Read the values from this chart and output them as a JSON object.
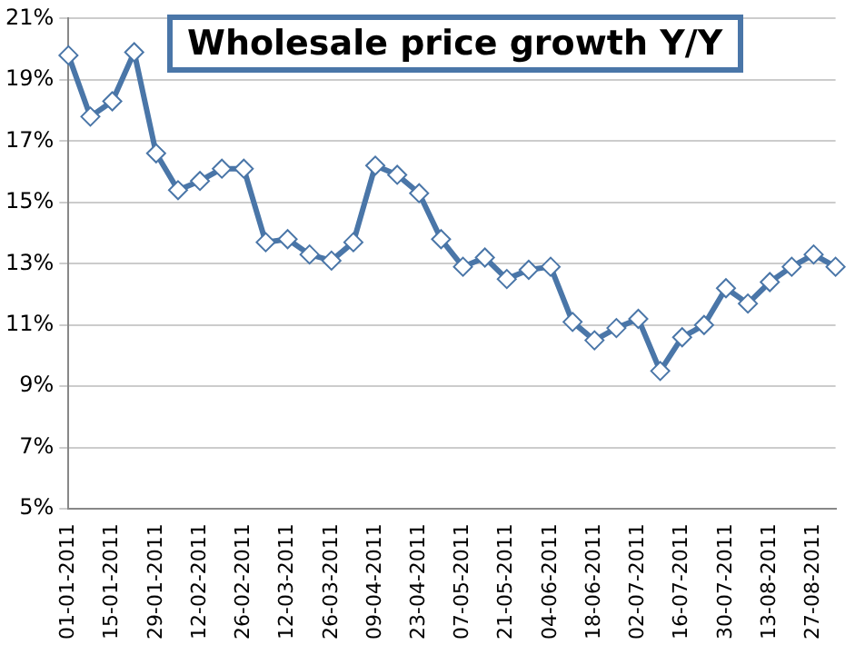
{
  "chart_data": {
    "type": "line",
    "title": "Wholesale price growth Y/Y",
    "categories": [
      "01-01-2011",
      null,
      "15-01-2011",
      null,
      "29-01-2011",
      null,
      "12-02-2011",
      null,
      "26-02-2011",
      null,
      "12-03-2011",
      null,
      "26-03-2011",
      null,
      "09-04-2011",
      null,
      "23-04-2011",
      null,
      "07-05-2011",
      null,
      "21-05-2011",
      null,
      "04-06-2011",
      null,
      "18-06-2011",
      null,
      "02-07-2011",
      null,
      "16-07-2011",
      null,
      "30-07-2011",
      null,
      "13-08-2011",
      null,
      "27-08-2011",
      null
    ],
    "series": [
      {
        "color": "#4a76a8",
        "values": [
          19.8,
          17.8,
          18.3,
          19.9,
          16.6,
          15.4,
          15.7,
          16.1,
          16.1,
          13.7,
          13.8,
          13.3,
          13.1,
          13.7,
          16.2,
          15.9,
          15.3,
          13.8,
          12.9,
          13.2,
          12.5,
          12.8,
          12.9,
          11.1,
          10.5,
          10.9,
          11.2,
          9.5,
          10.6,
          11.0,
          12.2,
          11.7,
          12.4,
          12.9,
          13.3,
          12.9
        ]
      }
    ],
    "ylim": [
      5,
      21
    ],
    "yticks": [
      {
        "value": 5,
        "label": "5%"
      },
      {
        "value": 7,
        "label": "7%"
      },
      {
        "value": 9,
        "label": "9%"
      },
      {
        "value": 11,
        "label": "11%"
      },
      {
        "value": 13,
        "label": "13%"
      },
      {
        "value": 15,
        "label": "15%"
      },
      {
        "value": 17,
        "label": "17%"
      },
      {
        "value": 19,
        "label": "19%"
      },
      {
        "value": 21,
        "label": "21%"
      }
    ],
    "grid": "y",
    "legend": false,
    "marker": "diamond",
    "line_style": "solid"
  }
}
